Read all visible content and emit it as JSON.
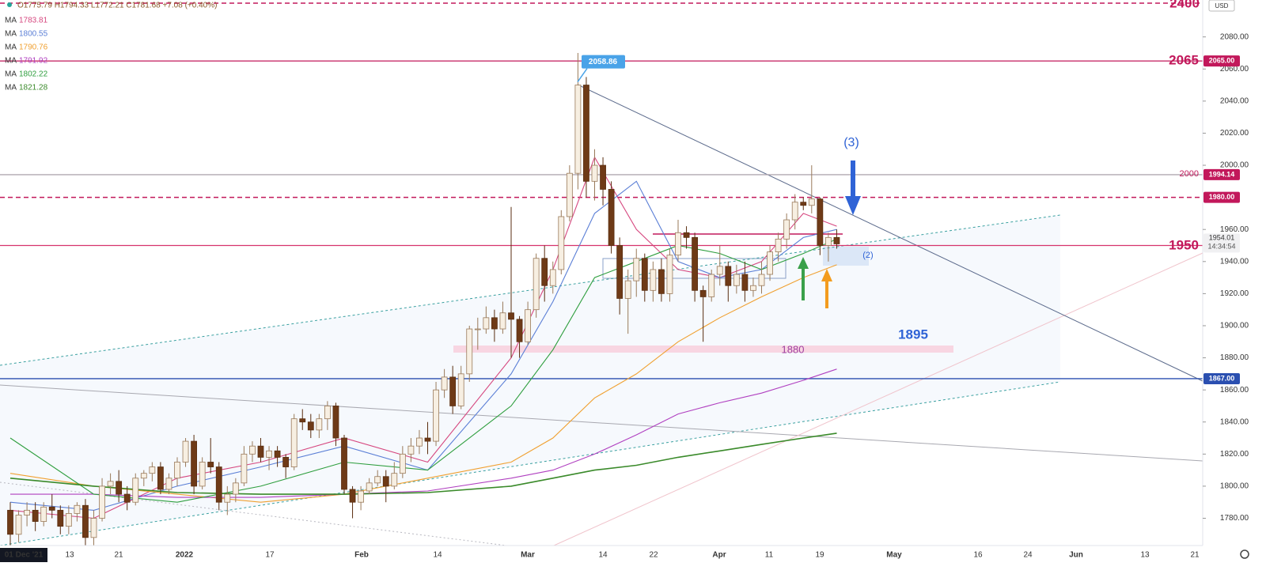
{
  "chart_data": {
    "type": "candlestick",
    "ohlc_header": "O1775.79 H1794.33 L1772.21 C1781.68 +7.08 (+0.40%)",
    "currency": "USD",
    "x_labels": [
      "01 Dec '21",
      "13",
      "21",
      "2022",
      "17",
      "Feb",
      "14",
      "Mar",
      "14",
      "22",
      "Apr",
      "11",
      "19",
      "May",
      "16",
      "24",
      "Jun",
      "13",
      "21"
    ],
    "ylim": [
      1763,
      2103
    ],
    "yticks": [
      {
        "value": 2080,
        "label": "2080.00"
      },
      {
        "value": 2060,
        "label": "2060.00"
      },
      {
        "value": 2040,
        "label": "2040.00"
      },
      {
        "value": 2020,
        "label": "2020.00"
      },
      {
        "value": 2000,
        "label": "2000.00"
      },
      {
        "value": 1960,
        "label": "1960.00"
      },
      {
        "value": 1940,
        "label": "1940.00"
      },
      {
        "value": 1920,
        "label": "1920.00"
      },
      {
        "value": 1900,
        "label": "1900.00"
      },
      {
        "value": 1880,
        "label": "1880.00"
      },
      {
        "value": 1860,
        "label": "1860.00"
      },
      {
        "value": 1840,
        "label": "1840.00"
      },
      {
        "value": 1820,
        "label": "1820.00"
      },
      {
        "value": 1800,
        "label": "1800.00"
      },
      {
        "value": 1780,
        "label": "1780.00"
      }
    ],
    "grid": false,
    "up_color": "#f7efe2",
    "down_color": "#6e3a17",
    "candles": [
      [
        1785,
        1790,
        1762,
        1770
      ],
      [
        1770,
        1785,
        1765,
        1782
      ],
      [
        1782,
        1790,
        1775,
        1785
      ],
      [
        1785,
        1790,
        1772,
        1778
      ],
      [
        1778,
        1790,
        1775,
        1787
      ],
      [
        1787,
        1795,
        1780,
        1785
      ],
      [
        1785,
        1788,
        1770,
        1775
      ],
      [
        1775,
        1788,
        1770,
        1783
      ],
      [
        1783,
        1790,
        1778,
        1788
      ],
      [
        1788,
        1792,
        1760,
        1768
      ],
      [
        1768,
        1785,
        1755,
        1780
      ],
      [
        1780,
        1805,
        1778,
        1800
      ],
      [
        1800,
        1808,
        1795,
        1803
      ],
      [
        1803,
        1810,
        1790,
        1795
      ],
      [
        1795,
        1800,
        1785,
        1790
      ],
      [
        1790,
        1808,
        1788,
        1805
      ],
      [
        1805,
        1810,
        1800,
        1808
      ],
      [
        1808,
        1815,
        1803,
        1812
      ],
      [
        1812,
        1815,
        1795,
        1798
      ],
      [
        1798,
        1808,
        1795,
        1805
      ],
      [
        1805,
        1818,
        1800,
        1815
      ],
      [
        1815,
        1830,
        1812,
        1828
      ],
      [
        1828,
        1832,
        1795,
        1800
      ],
      [
        1800,
        1818,
        1798,
        1815
      ],
      [
        1815,
        1830,
        1808,
        1812
      ],
      [
        1812,
        1815,
        1785,
        1790
      ],
      [
        1790,
        1800,
        1782,
        1795
      ],
      [
        1795,
        1805,
        1790,
        1802
      ],
      [
        1802,
        1825,
        1800,
        1820
      ],
      [
        1820,
        1828,
        1815,
        1825
      ],
      [
        1825,
        1830,
        1815,
        1818
      ],
      [
        1818,
        1825,
        1810,
        1822
      ],
      [
        1822,
        1825,
        1812,
        1818
      ],
      [
        1818,
        1820,
        1805,
        1812
      ],
      [
        1812,
        1845,
        1810,
        1842
      ],
      [
        1842,
        1848,
        1835,
        1840
      ],
      [
        1840,
        1845,
        1830,
        1835
      ],
      [
        1835,
        1845,
        1830,
        1842
      ],
      [
        1842,
        1853,
        1835,
        1850
      ],
      [
        1850,
        1852,
        1825,
        1830
      ],
      [
        1830,
        1832,
        1795,
        1798
      ],
      [
        1798,
        1800,
        1780,
        1790
      ],
      [
        1790,
        1800,
        1785,
        1797
      ],
      [
        1797,
        1805,
        1795,
        1802
      ],
      [
        1802,
        1810,
        1800,
        1806
      ],
      [
        1806,
        1810,
        1790,
        1800
      ],
      [
        1800,
        1815,
        1798,
        1808
      ],
      [
        1808,
        1825,
        1805,
        1820
      ],
      [
        1820,
        1830,
        1815,
        1825
      ],
      [
        1825,
        1835,
        1820,
        1830
      ],
      [
        1830,
        1840,
        1820,
        1828
      ],
      [
        1828,
        1865,
        1825,
        1860
      ],
      [
        1860,
        1873,
        1855,
        1868
      ],
      [
        1868,
        1875,
        1845,
        1850
      ],
      [
        1850,
        1875,
        1848,
        1870
      ],
      [
        1870,
        1900,
        1865,
        1898
      ],
      [
        1898,
        1905,
        1885,
        1898
      ],
      [
        1898,
        1912,
        1895,
        1905
      ],
      [
        1905,
        1910,
        1890,
        1898
      ],
      [
        1898,
        1915,
        1895,
        1908
      ],
      [
        1908,
        1974,
        1880,
        1904
      ],
      [
        1904,
        1906,
        1880,
        1890
      ],
      [
        1890,
        1915,
        1888,
        1910
      ],
      [
        1910,
        1945,
        1905,
        1942
      ],
      [
        1942,
        1950,
        1915,
        1925
      ],
      [
        1925,
        1940,
        1920,
        1935
      ],
      [
        1935,
        1972,
        1932,
        1968
      ],
      [
        1968,
        2000,
        1965,
        1995
      ],
      [
        1995,
        2070,
        1985,
        2050
      ],
      [
        2050,
        2055,
        1980,
        1990
      ],
      [
        1990,
        2010,
        1978,
        2000
      ],
      [
        2000,
        2005,
        1975,
        1985
      ],
      [
        1985,
        1990,
        1945,
        1950
      ],
      [
        1950,
        1955,
        1907,
        1917
      ],
      [
        1917,
        1935,
        1895,
        1928
      ],
      [
        1928,
        1948,
        1918,
        1942
      ],
      [
        1942,
        1945,
        1915,
        1922
      ],
      [
        1922,
        1940,
        1915,
        1935
      ],
      [
        1935,
        1942,
        1915,
        1920
      ],
      [
        1920,
        1948,
        1915,
        1944
      ],
      [
        1944,
        1966,
        1940,
        1958
      ],
      [
        1958,
        1962,
        1948,
        1955
      ],
      [
        1955,
        1958,
        1915,
        1922
      ],
      [
        1922,
        1925,
        1890,
        1918
      ],
      [
        1918,
        1935,
        1915,
        1932
      ],
      [
        1932,
        1950,
        1925,
        1937
      ],
      [
        1937,
        1940,
        1915,
        1925
      ],
      [
        1925,
        1938,
        1920,
        1932
      ],
      [
        1932,
        1940,
        1915,
        1922
      ],
      [
        1922,
        1930,
        1918,
        1925
      ],
      [
        1925,
        1940,
        1920,
        1932
      ],
      [
        1932,
        1950,
        1928,
        1946
      ],
      [
        1946,
        1958,
        1940,
        1954
      ],
      [
        1954,
        1970,
        1948,
        1966
      ],
      [
        1966,
        1982,
        1960,
        1977
      ],
      [
        1977,
        1980,
        1972,
        1975
      ],
      [
        1975,
        2000,
        1970,
        1979
      ],
      [
        1979,
        1980,
        1944,
        1950
      ],
      [
        1950,
        1958,
        1940,
        1955
      ],
      [
        1955,
        1960,
        1948,
        1951
      ]
    ],
    "x": [
      0,
      10,
      20,
      30,
      40,
      50,
      60,
      65,
      70,
      75,
      80,
      85,
      90,
      95,
      99
    ],
    "series": [
      {
        "name": "MA",
        "legend_value": "1783.81",
        "color": "#d6477f",
        "values": [
          1785,
          1780,
          1805,
          1815,
          1830,
          1815,
          1880,
          1935,
          2005,
          1960,
          1935,
          1930,
          1940,
          1970,
          1962
        ]
      },
      {
        "name": "MA",
        "legend_value": "1800.55",
        "color": "#5b7fd6",
        "values": [
          1790,
          1785,
          1800,
          1812,
          1825,
          1810,
          1870,
          1915,
          1970,
          1990,
          1940,
          1930,
          1935,
          1955,
          1960
        ]
      },
      {
        "name": "MA",
        "legend_value": "1790.76",
        "color": "#f0a030",
        "values": [
          1808,
          1800,
          1795,
          1790,
          1795,
          1805,
          1815,
          1830,
          1855,
          1870,
          1890,
          1905,
          1918,
          1930,
          1938
        ]
      },
      {
        "name": "MA",
        "legend_value": "1791.92",
        "color": "#b040c0",
        "values": [
          1795,
          1795,
          1793,
          1793,
          1795,
          1797,
          1805,
          1810,
          1820,
          1832,
          1845,
          1852,
          1858,
          1866,
          1873
        ]
      },
      {
        "name": "MA",
        "legend_value": "1802.22",
        "color": "#2e9e3e",
        "values": [
          1830,
          1795,
          1790,
          1800,
          1815,
          1810,
          1850,
          1885,
          1930,
          1940,
          1950,
          1945,
          1935,
          1945,
          1954
        ]
      },
      {
        "name": "MA",
        "legend_value": "1821.28",
        "color": "#3a8a2a",
        "values": [
          1805,
          1800,
          1796,
          1795,
          1795,
          1796,
          1800,
          1805,
          1810,
          1813,
          1818,
          1822,
          1826,
          1830,
          1833
        ]
      }
    ],
    "levels": [
      {
        "value": 2065,
        "label": "2065.00",
        "color": "#c2185b",
        "style": "solid"
      },
      {
        "value": 1994.14,
        "label": "1994.14",
        "color": "#b0a8b0",
        "badge": "#c2185b",
        "style": "solid"
      },
      {
        "value": 1980,
        "label": "1980.00",
        "color": "#c2185b",
        "style": "dashed"
      },
      {
        "value": 1950,
        "label": "1950.00",
        "color": "#d6336c",
        "badge": "#ec7aa8",
        "style": "solid"
      },
      {
        "value": 1867,
        "label": "1867.00",
        "color": "#2a4fb0",
        "style": "solid"
      }
    ],
    "last_price": 1954.01,
    "countdown": "14:34:54",
    "peak_callout": 2058.86,
    "annotations": {
      "top": "2400",
      "r2065": "2065",
      "r2000": "2000",
      "r1950": "1950",
      "wave3": "(3)",
      "wave2": "(2)",
      "zone1880": "1880",
      "target1895": "1895"
    }
  }
}
